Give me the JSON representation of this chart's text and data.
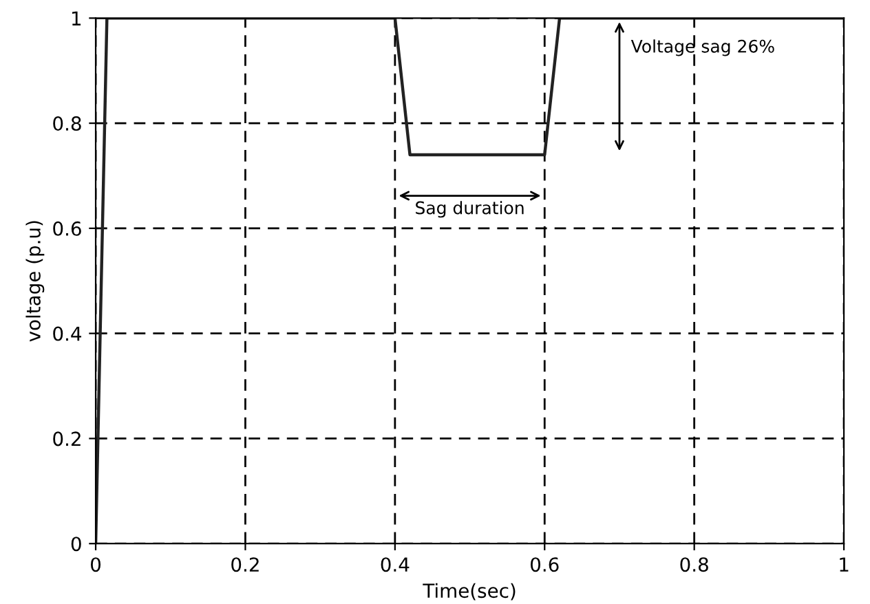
{
  "chart_data": {
    "type": "line",
    "xlabel": "Time(sec)",
    "ylabel": "voltage (p.u)",
    "x": [
      0,
      0.015,
      0.4,
      0.42,
      0.6,
      0.62,
      1
    ],
    "series": [
      {
        "color": "#222222",
        "values": [
          0,
          1,
          1,
          0.74,
          0.74,
          1,
          1
        ]
      }
    ],
    "xlim": [
      0,
      1
    ],
    "ylim": [
      0,
      1
    ],
    "xticks": [
      0,
      0.2,
      0.4,
      0.6,
      0.8,
      1
    ],
    "yticks": [
      0,
      0.2,
      0.4,
      0.6,
      0.8,
      1
    ],
    "grid": true,
    "marker": "none",
    "line_style": "solid",
    "annotations": [
      "Voltage sag 26%",
      "Sag duration"
    ]
  }
}
